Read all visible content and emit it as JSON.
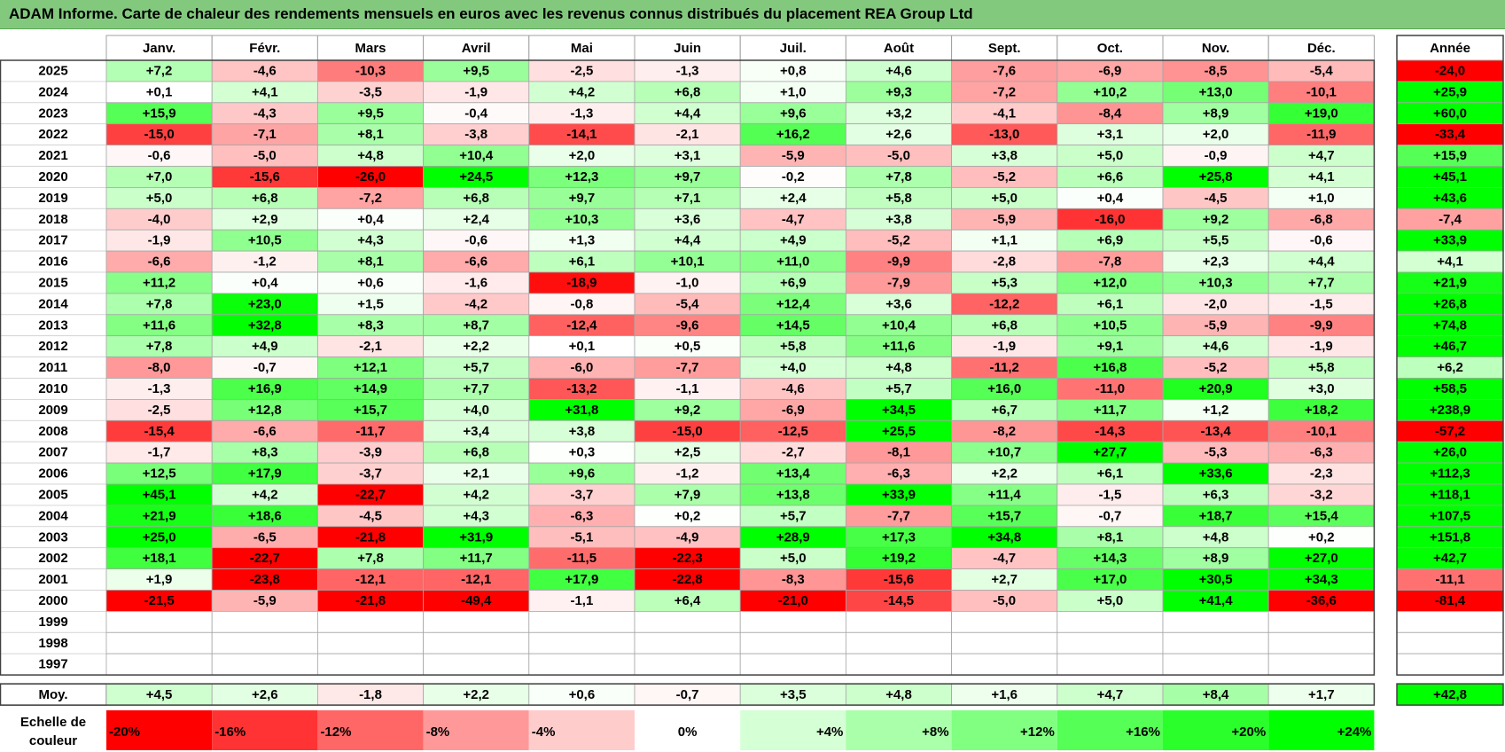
{
  "title": "ADAM Informe. Carte de chaleur des rendements mensuels en euros avec les revenus connus distribués du placement REA Group Ltd",
  "months": [
    "Janv.",
    "Févr.",
    "Mars",
    "Avril",
    "Mai",
    "Juin",
    "Juil.",
    "Août",
    "Sept.",
    "Oct.",
    "Nov.",
    "Déc."
  ],
  "annual_header": "Année",
  "avg_label": "Moy.",
  "scale_label": [
    "Echelle de",
    "couleur"
  ],
  "colors": {
    "max_red": "#ff0000",
    "max_green": "#00ff00",
    "zero": "#ffffff",
    "title_bar": "#82c97e"
  },
  "chart_data": {
    "type": "heatmap",
    "title": "ADAM Informe. Carte de chaleur des rendements mensuels en euros avec les revenus connus distribués du placement REA Group Ltd",
    "x": [
      "Janv.",
      "Févr.",
      "Mars",
      "Avril",
      "Mai",
      "Juin",
      "Juil.",
      "Août",
      "Sept.",
      "Oct.",
      "Nov.",
      "Déc."
    ],
    "rows": [
      {
        "year": "2025",
        "values": [
          7.2,
          -4.6,
          -10.3,
          9.5,
          -2.5,
          -1.3,
          0.8,
          4.6,
          -7.6,
          -6.9,
          -8.5,
          -5.4
        ],
        "annual": -24.0
      },
      {
        "year": "2024",
        "values": [
          0.1,
          4.1,
          -3.5,
          -1.9,
          4.2,
          6.8,
          1.0,
          9.3,
          -7.2,
          10.2,
          13.0,
          -10.1
        ],
        "annual": 25.9
      },
      {
        "year": "2023",
        "values": [
          15.9,
          -4.3,
          9.5,
          -0.4,
          -1.3,
          4.4,
          9.6,
          3.2,
          -4.1,
          -8.4,
          8.9,
          19.0
        ],
        "annual": 60.0
      },
      {
        "year": "2022",
        "values": [
          -15.0,
          -7.1,
          8.1,
          -3.8,
          -14.1,
          -2.1,
          16.2,
          2.6,
          -13.0,
          3.1,
          2.0,
          -11.9
        ],
        "annual": -33.4
      },
      {
        "year": "2021",
        "values": [
          -0.6,
          -5.0,
          4.8,
          10.4,
          2.0,
          3.1,
          -5.9,
          -5.0,
          3.8,
          5.0,
          -0.9,
          4.7
        ],
        "annual": 15.9
      },
      {
        "year": "2020",
        "values": [
          7.0,
          -15.6,
          -26.0,
          24.5,
          12.3,
          9.7,
          -0.2,
          7.8,
          -5.2,
          6.6,
          25.8,
          4.1
        ],
        "annual": 45.1
      },
      {
        "year": "2019",
        "values": [
          5.0,
          6.8,
          -7.2,
          6.8,
          9.7,
          7.1,
          2.4,
          5.8,
          5.0,
          0.4,
          -4.5,
          1.0
        ],
        "annual": 43.6
      },
      {
        "year": "2018",
        "values": [
          -4.0,
          2.9,
          0.4,
          2.4,
          10.3,
          3.6,
          -4.7,
          3.8,
          -5.9,
          -16.0,
          9.2,
          -6.8
        ],
        "annual": -7.4
      },
      {
        "year": "2017",
        "values": [
          -1.9,
          10.5,
          4.3,
          -0.6,
          1.3,
          4.4,
          4.9,
          -5.2,
          1.1,
          6.9,
          5.5,
          -0.6
        ],
        "annual": 33.9
      },
      {
        "year": "2016",
        "values": [
          -6.6,
          -1.2,
          8.1,
          -6.6,
          6.1,
          10.1,
          11.0,
          -9.9,
          -2.8,
          -7.8,
          2.3,
          4.4
        ],
        "annual": 4.1
      },
      {
        "year": "2015",
        "values": [
          11.2,
          0.4,
          0.6,
          -1.6,
          -18.9,
          -1.0,
          6.9,
          -7.9,
          5.3,
          12.0,
          10.3,
          7.7
        ],
        "annual": 21.9
      },
      {
        "year": "2014",
        "values": [
          7.8,
          23.0,
          1.5,
          -4.2,
          -0.8,
          -5.4,
          12.4,
          3.6,
          -12.2,
          6.1,
          -2.0,
          -1.5
        ],
        "annual": 26.8
      },
      {
        "year": "2013",
        "values": [
          11.6,
          32.8,
          8.3,
          8.7,
          -12.4,
          -9.6,
          14.5,
          10.4,
          6.8,
          10.5,
          -5.9,
          -9.9
        ],
        "annual": 74.8
      },
      {
        "year": "2012",
        "values": [
          7.8,
          4.9,
          -2.1,
          2.2,
          0.1,
          0.5,
          5.8,
          11.6,
          -1.9,
          9.1,
          4.6,
          -1.9
        ],
        "annual": 46.7
      },
      {
        "year": "2011",
        "values": [
          -8.0,
          -0.7,
          12.1,
          5.7,
          -6.0,
          -7.7,
          4.0,
          4.8,
          -11.2,
          16.8,
          -5.2,
          5.8
        ],
        "annual": 6.2
      },
      {
        "year": "2010",
        "values": [
          -1.3,
          16.9,
          14.9,
          7.7,
          -13.2,
          -1.1,
          -4.6,
          5.7,
          16.0,
          -11.0,
          20.9,
          3.0
        ],
        "annual": 58.5
      },
      {
        "year": "2009",
        "values": [
          -2.5,
          12.8,
          15.7,
          4.0,
          31.8,
          9.2,
          -6.9,
          34.5,
          6.7,
          11.7,
          1.2,
          18.2
        ],
        "annual": 238.9
      },
      {
        "year": "2008",
        "values": [
          -15.4,
          -6.6,
          -11.7,
          3.4,
          3.8,
          -15.0,
          -12.5,
          25.5,
          -8.2,
          -14.3,
          -13.4,
          -10.1
        ],
        "annual": -57.2
      },
      {
        "year": "2007",
        "values": [
          -1.7,
          8.3,
          -3.9,
          6.8,
          0.3,
          2.5,
          -2.7,
          -8.1,
          10.7,
          27.7,
          -5.3,
          -6.3
        ],
        "annual": 26.0
      },
      {
        "year": "2006",
        "values": [
          12.5,
          17.9,
          -3.7,
          2.1,
          9.6,
          -1.2,
          13.4,
          -6.3,
          2.2,
          6.1,
          33.6,
          -2.3
        ],
        "annual": 112.3
      },
      {
        "year": "2005",
        "values": [
          45.1,
          4.2,
          -22.7,
          4.2,
          -3.7,
          7.9,
          13.8,
          33.9,
          11.4,
          -1.5,
          6.3,
          -3.2
        ],
        "annual": 118.1
      },
      {
        "year": "2004",
        "values": [
          21.9,
          18.6,
          -4.5,
          4.3,
          -6.3,
          0.2,
          5.7,
          -7.7,
          15.7,
          -0.7,
          18.7,
          15.4
        ],
        "annual": 107.5
      },
      {
        "year": "2003",
        "values": [
          25.0,
          -6.5,
          -21.8,
          31.9,
          -5.1,
          -4.9,
          28.9,
          17.3,
          34.8,
          8.1,
          4.8,
          0.2
        ],
        "annual": 151.8
      },
      {
        "year": "2002",
        "values": [
          18.1,
          -22.7,
          7.8,
          11.7,
          -11.5,
          -22.3,
          5.0,
          19.2,
          -4.7,
          14.3,
          8.9,
          27.0
        ],
        "annual": 42.7
      },
      {
        "year": "2001",
        "values": [
          1.9,
          -23.8,
          -12.1,
          -12.1,
          17.9,
          -22.8,
          -8.3,
          -15.6,
          2.7,
          17.0,
          30.5,
          34.3
        ],
        "annual": -11.1
      },
      {
        "year": "2000",
        "values": [
          -21.5,
          -5.9,
          -21.8,
          -49.4,
          -1.1,
          6.4,
          -21.0,
          -14.5,
          -5.0,
          5.0,
          41.4,
          -36.6
        ],
        "annual": -81.4
      },
      {
        "year": "1999",
        "values": [
          null,
          null,
          null,
          null,
          null,
          null,
          null,
          null,
          null,
          null,
          null,
          null
        ],
        "annual": null
      },
      {
        "year": "1998",
        "values": [
          null,
          null,
          null,
          null,
          null,
          null,
          null,
          null,
          null,
          null,
          null,
          null
        ],
        "annual": null
      },
      {
        "year": "1997",
        "values": [
          null,
          null,
          null,
          null,
          null,
          null,
          null,
          null,
          null,
          null,
          null,
          null
        ],
        "annual": null
      }
    ],
    "average": {
      "values": [
        4.5,
        2.6,
        -1.8,
        2.2,
        0.6,
        -0.7,
        3.5,
        4.8,
        1.6,
        4.7,
        8.4,
        1.7
      ],
      "annual": 42.8
    },
    "color_scale": [
      -20,
      -16,
      -12,
      -8,
      -4,
      0,
      4,
      8,
      12,
      16,
      20,
      24
    ],
    "color_scale_labels": [
      "-20%",
      "-16%",
      "-12%",
      "-8%",
      "-4%",
      "0%",
      "+4%",
      "+8%",
      "+12%",
      "+16%",
      "+20%",
      "+24%"
    ]
  }
}
